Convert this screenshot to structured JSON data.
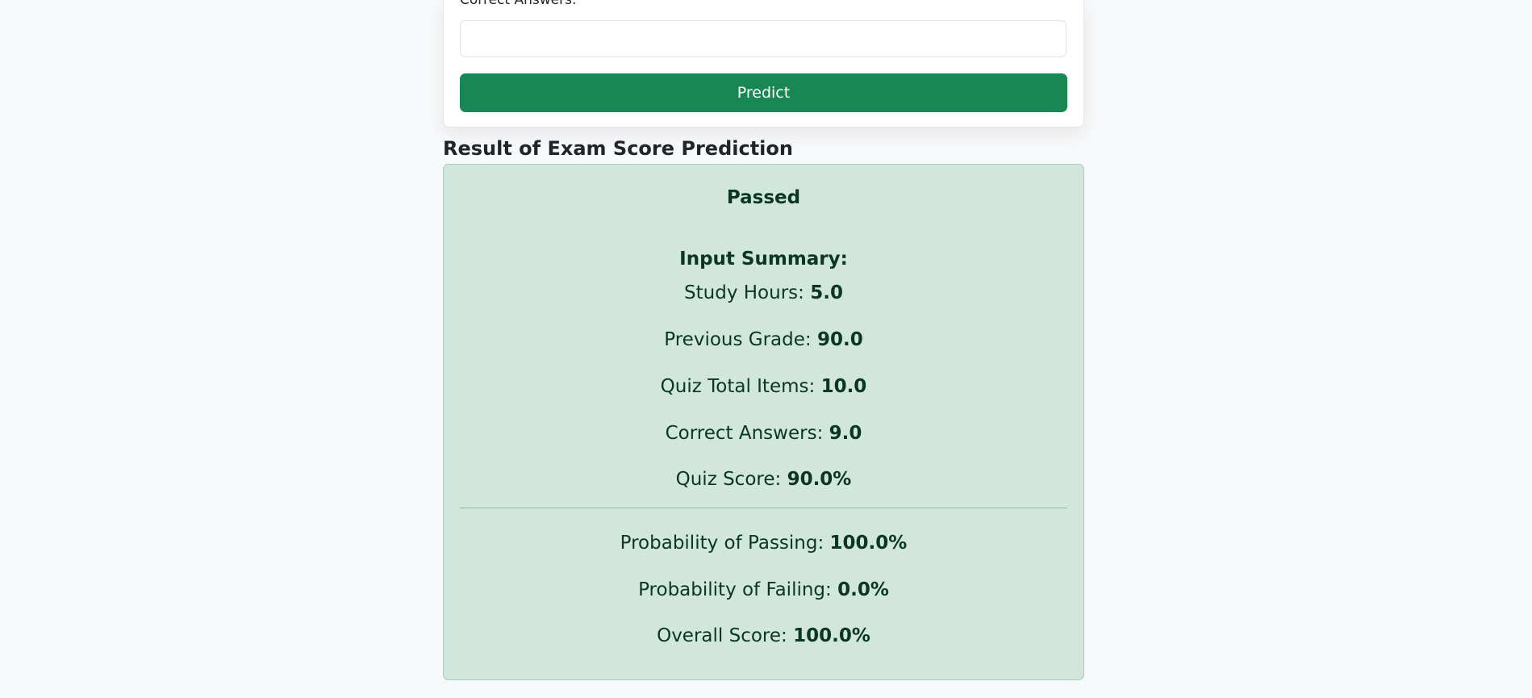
{
  "form": {
    "field_label": "Correct Answers:",
    "field_value": "",
    "predict_label": "Predict"
  },
  "result": {
    "heading": "Result of Exam Score Prediction",
    "status": "Passed",
    "summary_title": "Input Summary:",
    "study_hours_label": "Study Hours: ",
    "study_hours_value": "5.0",
    "previous_grade_label": "Previous Grade: ",
    "previous_grade_value": "90.0",
    "quiz_total_label": "Quiz Total Items: ",
    "quiz_total_value": "10.0",
    "correct_answers_label": "Correct Answers: ",
    "correct_answers_value": "9.0",
    "quiz_score_label": "Quiz Score: ",
    "quiz_score_value": "90.0%",
    "prob_pass_label": "Probability of Passing: ",
    "prob_pass_value": "100.0%",
    "prob_fail_label": "Probability of Failing: ",
    "prob_fail_value": "0.0%",
    "overall_label": "Overall Score: ",
    "overall_value": "100.0%"
  },
  "colors": {
    "page_background": "#f8f9fa",
    "button": "#198754",
    "success_background": "#d1e7dd",
    "success_border": "#a3cfbb",
    "success_text": "#0a3622"
  }
}
